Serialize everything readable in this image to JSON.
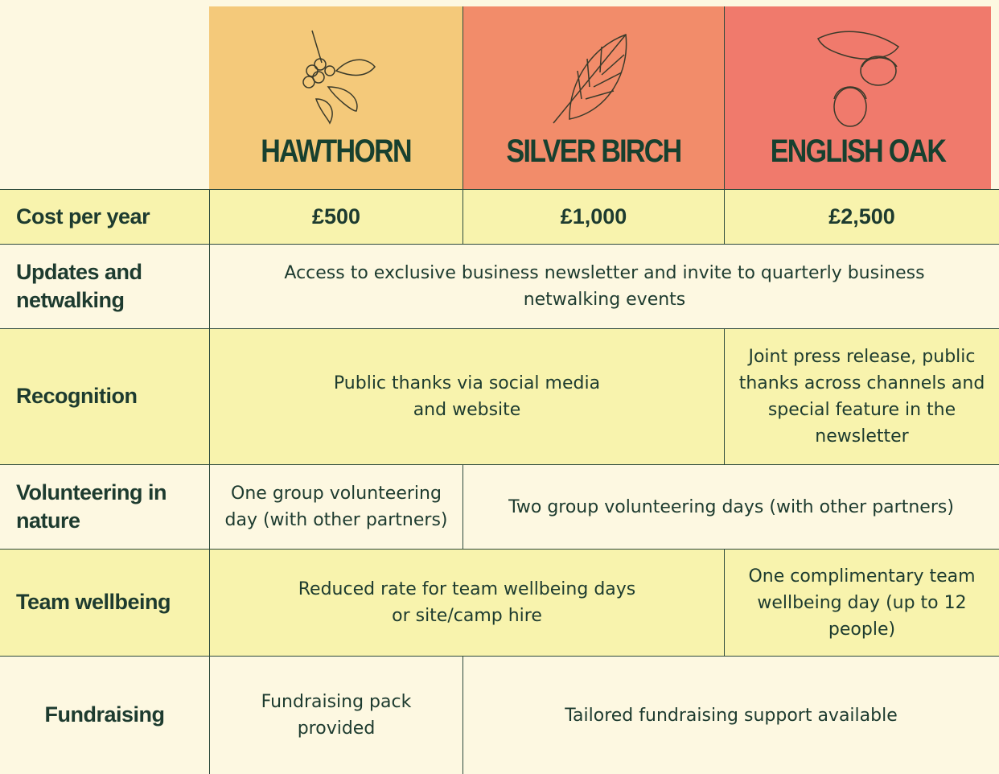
{
  "header": {
    "columns": [
      "HAWTHORN",
      "SILVER BIRCH",
      "ENGLISH OAK"
    ]
  },
  "table": {
    "rows": [
      {
        "label": "Cost per year",
        "cells": [
          "£500",
          "£1,000",
          "£2,500"
        ]
      },
      {
        "label": "Updates and netwalking",
        "cells": [
          "Access to exclusive business newsletter and invite to quarterly business netwalking events"
        ]
      },
      {
        "label": "Recognition",
        "cells": [
          "Public thanks via social media and website",
          "Joint press release, public thanks across channels and special feature in the newsletter"
        ]
      },
      {
        "label": "Volunteering in nature",
        "cells": [
          "One group volunteering day (with other partners)",
          "Two group volunteering days (with other partners)"
        ]
      },
      {
        "label": "Team wellbeing",
        "cells": [
          "Reduced rate for team wellbeing days or site/camp hire",
          "One complimentary team wellbeing day (up to 12 people)"
        ]
      },
      {
        "label": "Fundraising",
        "cells": [
          "Fundraising pack provided",
          "Tailored fundraising support available"
        ]
      }
    ]
  }
}
